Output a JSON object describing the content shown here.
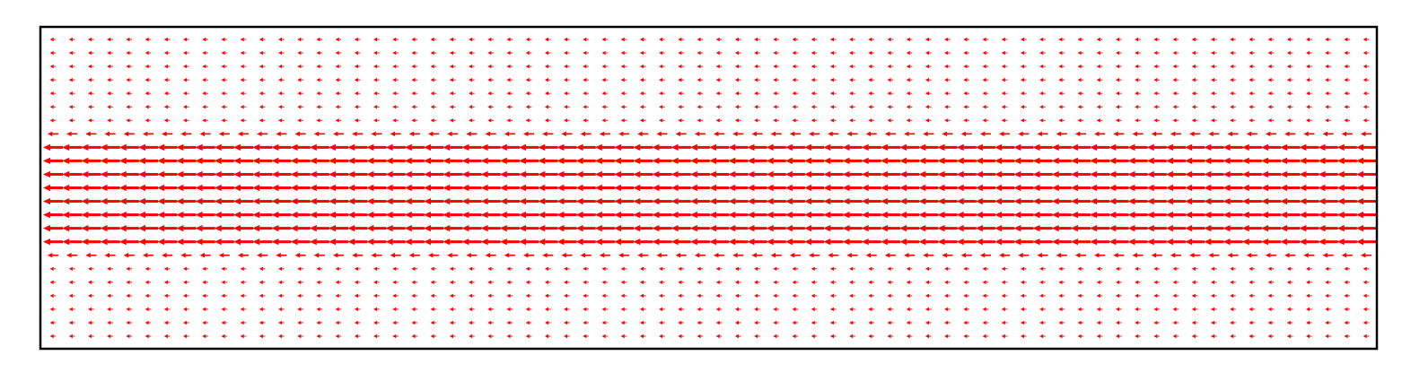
{
  "chart_data": {
    "type": "quiver",
    "title": "",
    "xlabel": "",
    "ylabel": "",
    "axes_visible": false,
    "grid": false,
    "color": "#ff0000",
    "direction": "left",
    "columns": 70,
    "rows": 23,
    "u_by_row": [
      -0.3,
      -0.3,
      -0.3,
      -0.3,
      -0.3,
      -0.3,
      -0.3,
      -0.55,
      -1.0,
      -1.0,
      -1.0,
      -1.0,
      -1.0,
      -1.0,
      -1.0,
      -1.0,
      -0.55,
      -0.3,
      -0.3,
      -0.3,
      -0.3,
      -0.3,
      -0.3
    ],
    "v": 0
  }
}
